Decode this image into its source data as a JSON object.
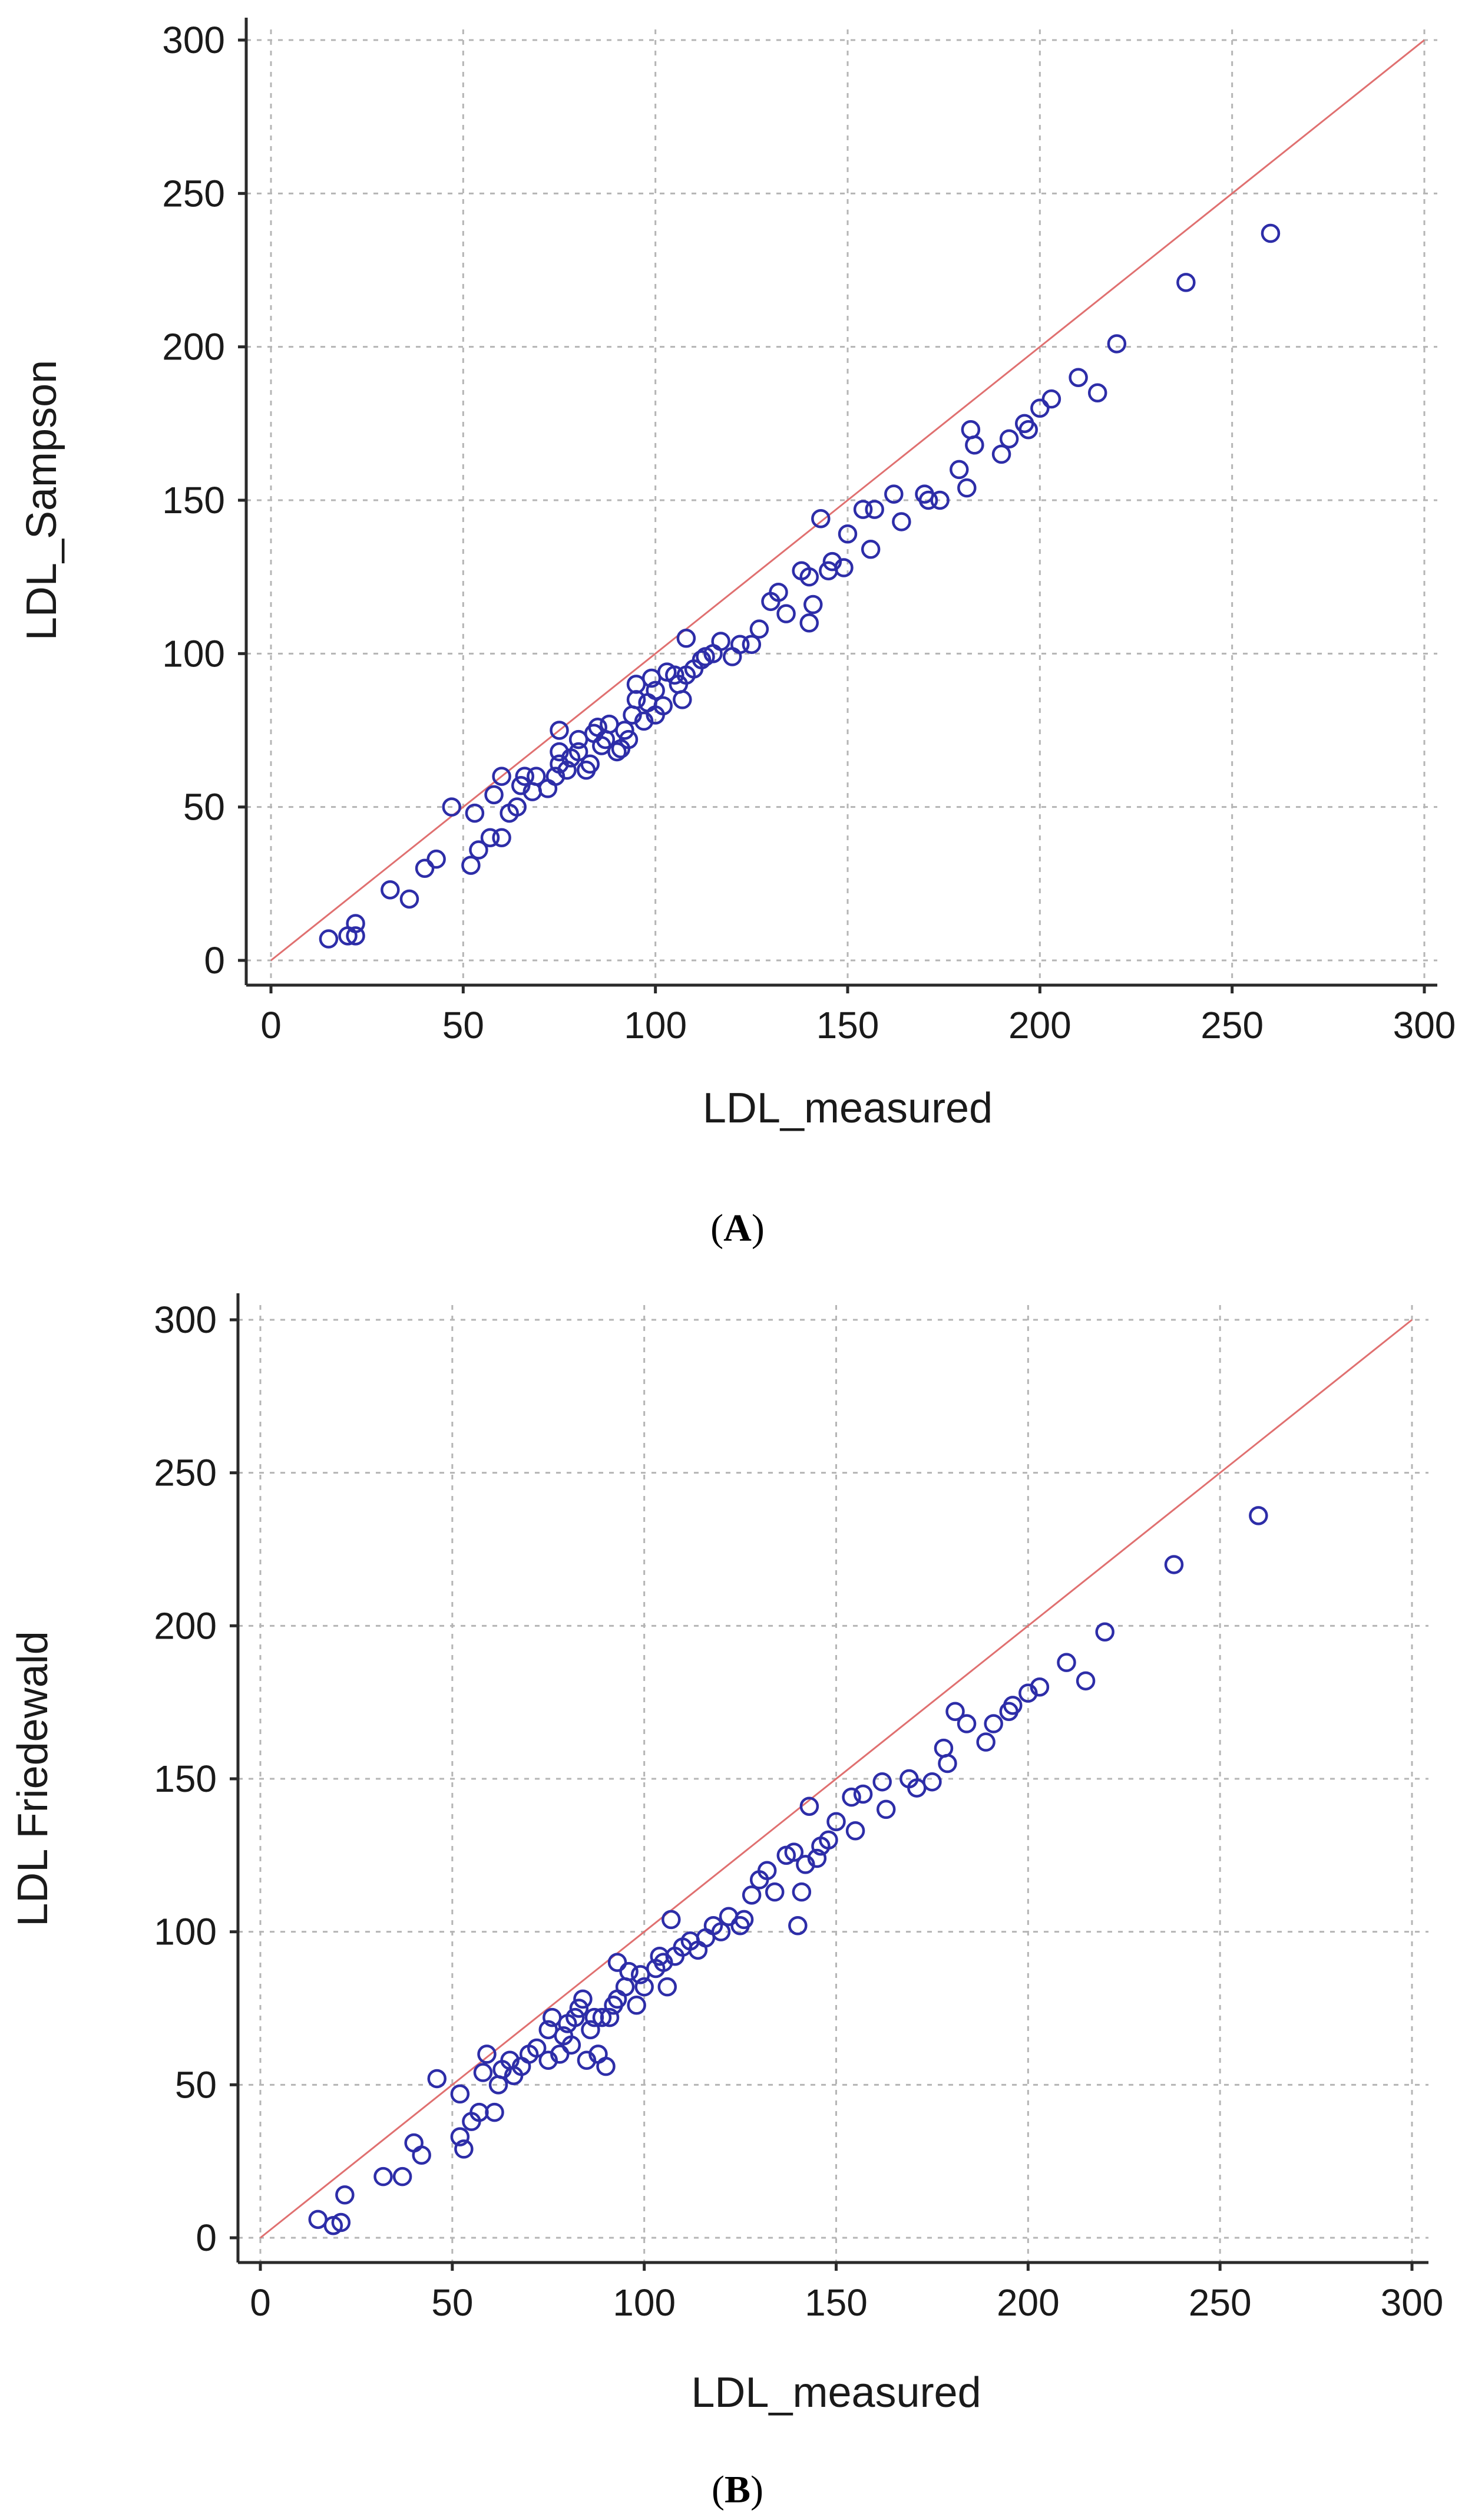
{
  "chart_data": [
    {
      "type": "scatter",
      "panel": "A",
      "xlabel": "LDL_measured",
      "ylabel": "LDL_Sampson",
      "xlim": [
        0,
        300
      ],
      "ylim": [
        0,
        300
      ],
      "xticks": [
        0,
        50,
        100,
        150,
        200,
        250,
        300
      ],
      "yticks": [
        0,
        50,
        100,
        150,
        200,
        250,
        300
      ],
      "grid": true,
      "identity_line": true,
      "points": [
        [
          15,
          7
        ],
        [
          20,
          8
        ],
        [
          22,
          8
        ],
        [
          22,
          12
        ],
        [
          31,
          23
        ],
        [
          36,
          20
        ],
        [
          40,
          30
        ],
        [
          43,
          33
        ],
        [
          47,
          50
        ],
        [
          52,
          31
        ],
        [
          53,
          48
        ],
        [
          54,
          36
        ],
        [
          57,
          40
        ],
        [
          58,
          54
        ],
        [
          60,
          40
        ],
        [
          60,
          60
        ],
        [
          62,
          48
        ],
        [
          64,
          50
        ],
        [
          65,
          57
        ],
        [
          66,
          60
        ],
        [
          68,
          55
        ],
        [
          69,
          60
        ],
        [
          72,
          56
        ],
        [
          74,
          60
        ],
        [
          75,
          64
        ],
        [
          75,
          68
        ],
        [
          75,
          75
        ],
        [
          77,
          62
        ],
        [
          78,
          66
        ],
        [
          80,
          68
        ],
        [
          80,
          72
        ],
        [
          82,
          62
        ],
        [
          83,
          64
        ],
        [
          84,
          74
        ],
        [
          85,
          76
        ],
        [
          86,
          70
        ],
        [
          87,
          72
        ],
        [
          88,
          77
        ],
        [
          90,
          68
        ],
        [
          91,
          69
        ],
        [
          92,
          75
        ],
        [
          93,
          72
        ],
        [
          94,
          80
        ],
        [
          95,
          85
        ],
        [
          95,
          90
        ],
        [
          97,
          78
        ],
        [
          98,
          84
        ],
        [
          99,
          92
        ],
        [
          100,
          88
        ],
        [
          100,
          80
        ],
        [
          102,
          83
        ],
        [
          103,
          94
        ],
        [
          105,
          93
        ],
        [
          106,
          90
        ],
        [
          107,
          85
        ],
        [
          108,
          105
        ],
        [
          108,
          93
        ],
        [
          110,
          95
        ],
        [
          112,
          98
        ],
        [
          113,
          99
        ],
        [
          115,
          100
        ],
        [
          117,
          104
        ],
        [
          120,
          99
        ],
        [
          122,
          103
        ],
        [
          125,
          103
        ],
        [
          127,
          108
        ],
        [
          130,
          117
        ],
        [
          132,
          120
        ],
        [
          134,
          113
        ],
        [
          138,
          127
        ],
        [
          140,
          125
        ],
        [
          140,
          110
        ],
        [
          141,
          116
        ],
        [
          143,
          144
        ],
        [
          145,
          127
        ],
        [
          146,
          130
        ],
        [
          149,
          128
        ],
        [
          150,
          139
        ],
        [
          154,
          147
        ],
        [
          156,
          134
        ],
        [
          157,
          147
        ],
        [
          162,
          152
        ],
        [
          164,
          143
        ],
        [
          170,
          152
        ],
        [
          171,
          150
        ],
        [
          174,
          150
        ],
        [
          179,
          160
        ],
        [
          181,
          154
        ],
        [
          182,
          173
        ],
        [
          183,
          168
        ],
        [
          190,
          165
        ],
        [
          192,
          170
        ],
        [
          196,
          175
        ],
        [
          197,
          173
        ],
        [
          200,
          180
        ],
        [
          203,
          183
        ],
        [
          210,
          190
        ],
        [
          215,
          185
        ],
        [
          220,
          201
        ],
        [
          238,
          221
        ],
        [
          260,
          237
        ]
      ]
    },
    {
      "type": "scatter",
      "panel": "B",
      "xlabel": "LDL_measured",
      "ylabel": "LDL Friedewald",
      "xlim": [
        0,
        300
      ],
      "ylim": [
        0,
        300
      ],
      "xticks": [
        0,
        50,
        100,
        150,
        200,
        250,
        300
      ],
      "yticks": [
        0,
        50,
        100,
        150,
        200,
        250,
        300
      ],
      "grid": true,
      "identity_line": true,
      "points": [
        [
          15,
          6
        ],
        [
          19,
          4
        ],
        [
          21,
          5
        ],
        [
          22,
          14
        ],
        [
          32,
          20
        ],
        [
          37,
          20
        ],
        [
          40,
          31
        ],
        [
          42,
          27
        ],
        [
          46,
          52
        ],
        [
          52,
          47
        ],
        [
          52,
          33
        ],
        [
          53,
          29
        ],
        [
          55,
          38
        ],
        [
          57,
          41
        ],
        [
          58,
          54
        ],
        [
          59,
          60
        ],
        [
          61,
          41
        ],
        [
          62,
          50
        ],
        [
          63,
          55
        ],
        [
          65,
          58
        ],
        [
          66,
          53
        ],
        [
          68,
          56
        ],
        [
          70,
          60
        ],
        [
          72,
          62
        ],
        [
          75,
          58
        ],
        [
          75,
          68
        ],
        [
          76,
          72
        ],
        [
          78,
          60
        ],
        [
          79,
          66
        ],
        [
          80,
          70
        ],
        [
          81,
          63
        ],
        [
          82,
          72
        ],
        [
          83,
          75
        ],
        [
          84,
          78
        ],
        [
          85,
          58
        ],
        [
          86,
          68
        ],
        [
          87,
          72
        ],
        [
          88,
          60
        ],
        [
          89,
          72
        ],
        [
          90,
          56
        ],
        [
          91,
          72
        ],
        [
          92,
          76
        ],
        [
          93,
          78
        ],
        [
          93,
          90
        ],
        [
          95,
          82
        ],
        [
          96,
          87
        ],
        [
          98,
          76
        ],
        [
          99,
          86
        ],
        [
          100,
          82
        ],
        [
          103,
          88
        ],
        [
          104,
          92
        ],
        [
          105,
          90
        ],
        [
          106,
          82
        ],
        [
          107,
          104
        ],
        [
          108,
          92
        ],
        [
          110,
          95
        ],
        [
          112,
          97
        ],
        [
          114,
          94
        ],
        [
          116,
          98
        ],
        [
          118,
          102
        ],
        [
          120,
          100
        ],
        [
          122,
          105
        ],
        [
          125,
          102
        ],
        [
          126,
          104
        ],
        [
          128,
          112
        ],
        [
          130,
          117
        ],
        [
          132,
          120
        ],
        [
          134,
          113
        ],
        [
          137,
          125
        ],
        [
          139,
          126
        ],
        [
          140,
          102
        ],
        [
          141,
          113
        ],
        [
          142,
          122
        ],
        [
          143,
          141
        ],
        [
          145,
          124
        ],
        [
          146,
          128
        ],
        [
          148,
          130
        ],
        [
          150,
          136
        ],
        [
          154,
          144
        ],
        [
          155,
          133
        ],
        [
          157,
          145
        ],
        [
          162,
          149
        ],
        [
          163,
          140
        ],
        [
          169,
          150
        ],
        [
          171,
          147
        ],
        [
          175,
          149
        ],
        [
          178,
          160
        ],
        [
          179,
          155
        ],
        [
          181,
          172
        ],
        [
          184,
          168
        ],
        [
          189,
          162
        ],
        [
          191,
          168
        ],
        [
          195,
          172
        ],
        [
          196,
          174
        ],
        [
          200,
          178
        ],
        [
          203,
          180
        ],
        [
          210,
          188
        ],
        [
          215,
          182
        ],
        [
          220,
          198
        ],
        [
          238,
          220
        ],
        [
          260,
          236
        ]
      ]
    }
  ],
  "captions": {
    "a": "A",
    "b": "B"
  }
}
